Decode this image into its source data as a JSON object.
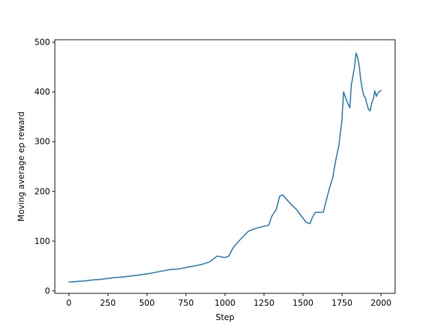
{
  "chart_data": {
    "type": "line",
    "title": "",
    "xlabel": "Step",
    "ylabel": "Moving average ep reward",
    "xlim": [
      -90,
      2090
    ],
    "ylim": [
      -5,
      505
    ],
    "x_ticks": [
      0,
      250,
      500,
      750,
      1000,
      1250,
      1500,
      1750,
      2000
    ],
    "y_ticks": [
      0,
      100,
      200,
      300,
      400,
      500
    ],
    "grid": false,
    "legend": "none",
    "colors": {
      "series": "#1f77b4",
      "axes": "#000000",
      "background": "#ffffff"
    },
    "series": [
      {
        "x": [
          0,
          25,
          50,
          100,
          150,
          200,
          250,
          300,
          350,
          400,
          450,
          500,
          550,
          600,
          650,
          700,
          750,
          800,
          850,
          900,
          950,
          1000,
          1025,
          1050,
          1100,
          1150,
          1200,
          1250,
          1280,
          1300,
          1330,
          1350,
          1370,
          1400,
          1430,
          1460,
          1490,
          1520,
          1545,
          1560,
          1580,
          1600,
          1630,
          1650,
          1670,
          1690,
          1710,
          1730,
          1750,
          1760,
          1780,
          1800,
          1810,
          1820,
          1830,
          1840,
          1850,
          1860,
          1870,
          1880,
          1890,
          1900,
          1910,
          1920,
          1930,
          1940,
          1950,
          1960,
          1970,
          1980,
          1990,
          2000
        ],
        "y": [
          18,
          18,
          19,
          20,
          22,
          23,
          25,
          27,
          28,
          30,
          32,
          34,
          37,
          40,
          43,
          44,
          47,
          50,
          53,
          58,
          70,
          67,
          70,
          86,
          104,
          120,
          126,
          130,
          132,
          150,
          165,
          190,
          193,
          182,
          172,
          163,
          150,
          138,
          135,
          148,
          158,
          158,
          158,
          183,
          207,
          227,
          263,
          293,
          345,
          400,
          382,
          368,
          415,
          432,
          450,
          478,
          470,
          452,
          425,
          405,
          392,
          388,
          375,
          365,
          362,
          378,
          385,
          402,
          391,
          398,
          401,
          403
        ]
      }
    ]
  }
}
